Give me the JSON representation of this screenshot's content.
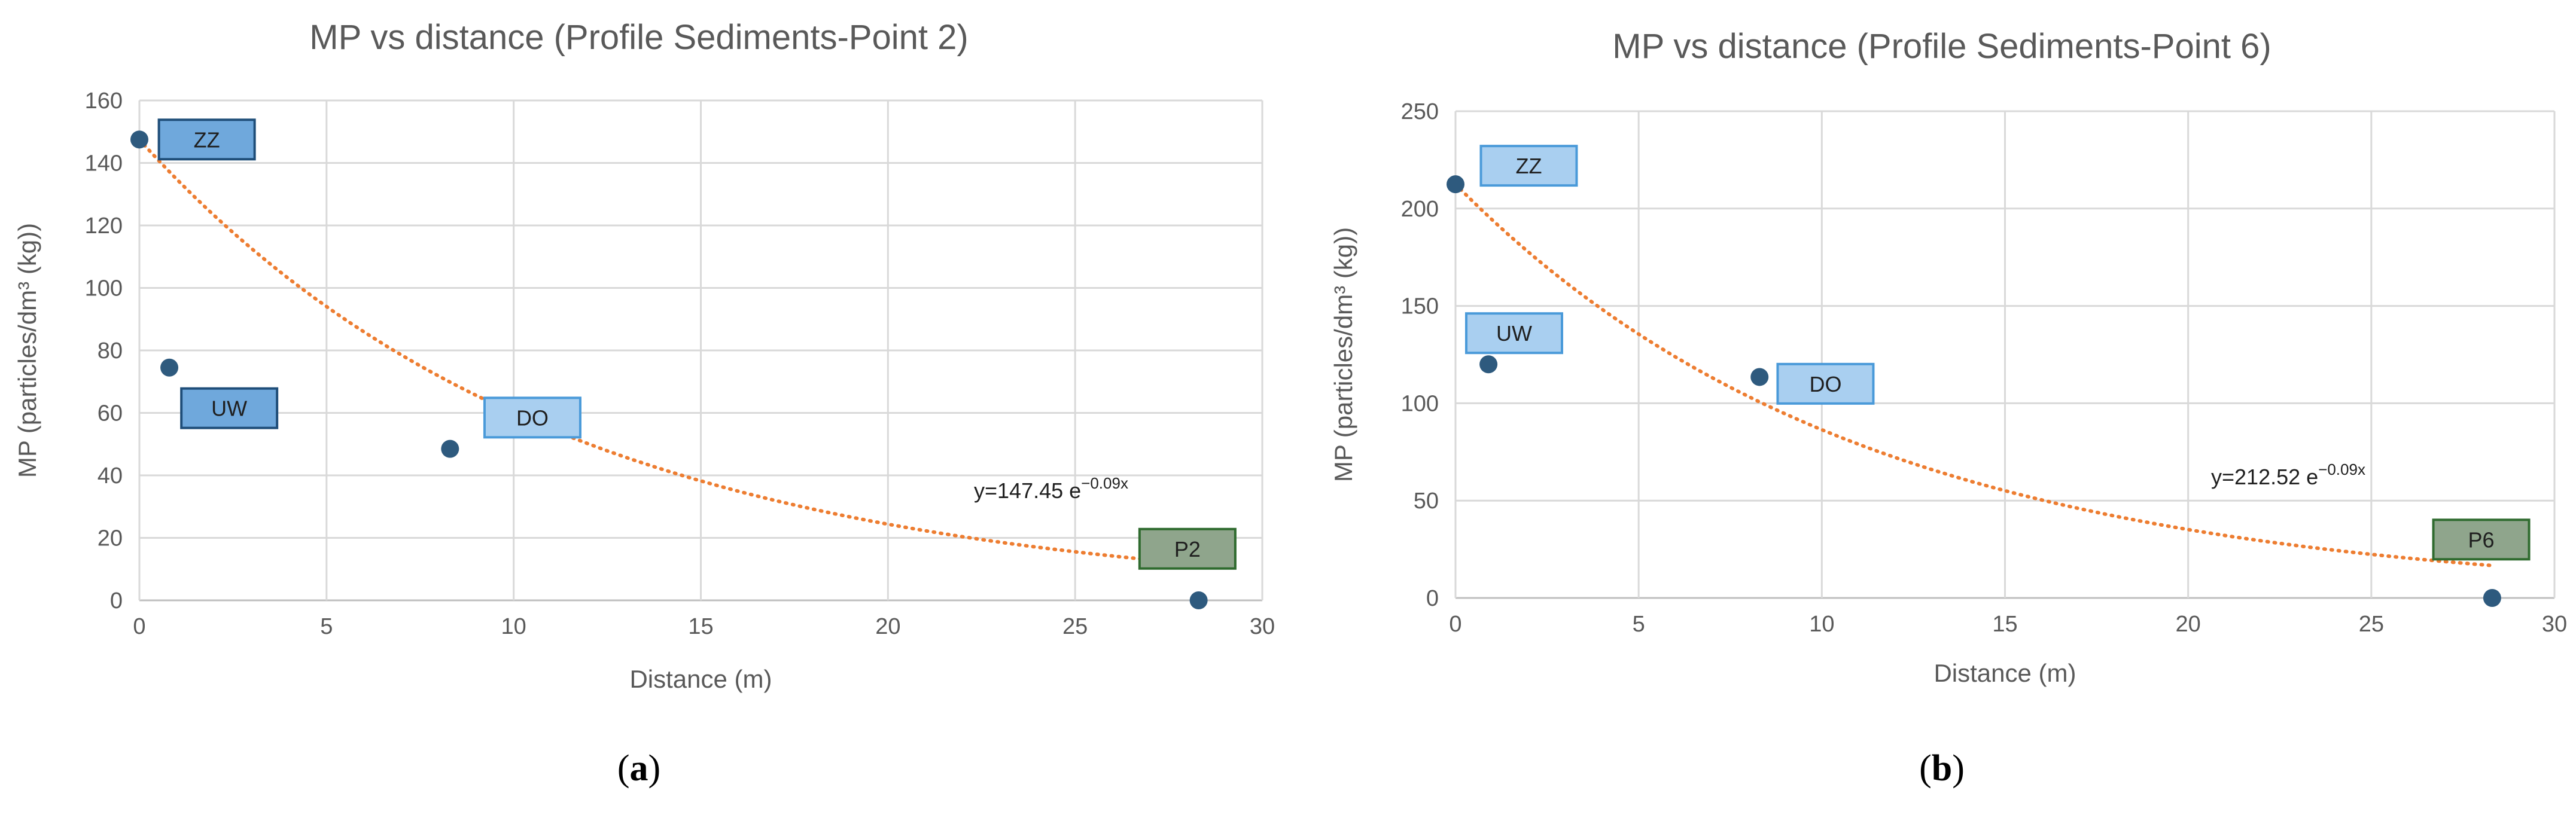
{
  "chart_data": [
    {
      "type": "scatter",
      "title": "MP vs distance (Profile Sediments-Point 2)",
      "xlabel": "Distance (m)",
      "ylabel": "MP (particles/dm³ (kg))",
      "xlim": [
        0,
        30
      ],
      "ylim": [
        0,
        160
      ],
      "xticks": [
        0,
        5,
        10,
        15,
        20,
        25,
        30
      ],
      "yticks": [
        0,
        20,
        40,
        60,
        80,
        100,
        120,
        140,
        160
      ],
      "grid": true,
      "points": [
        {
          "x": 0,
          "y": 147.5
        },
        {
          "x": 0.8,
          "y": 74.5
        },
        {
          "x": 8.3,
          "y": 48.5
        },
        {
          "x": 28.3,
          "y": 0
        }
      ],
      "trendline": {
        "type": "exponential",
        "a": 147.45,
        "b": -0.09,
        "x_range": [
          0,
          28.3
        ],
        "style": "dotted",
        "color": "#ED7D31"
      },
      "equation": {
        "base": "y=147.45 e",
        "exp": "−0.09x"
      },
      "annotations": [
        {
          "text": "ZZ",
          "style": "dark",
          "x": 1.8,
          "y": 147.5
        },
        {
          "text": "UW",
          "style": "dark",
          "x": 2.4,
          "y": 61.5
        },
        {
          "text": "DO",
          "style": "light",
          "x": 10.5,
          "y": 58.5
        },
        {
          "text": "P2",
          "style": "green",
          "x": 28.0,
          "y": 16.5
        }
      ],
      "panel_label": "a"
    },
    {
      "type": "scatter",
      "title": "MP vs distance (Profile Sediments-Point 6)",
      "xlabel": "Distance (m)",
      "ylabel": "MP (particles/dm³ (kg))",
      "xlim": [
        0,
        30
      ],
      "ylim": [
        0,
        250
      ],
      "xticks": [
        0,
        5,
        10,
        15,
        20,
        25,
        30
      ],
      "yticks": [
        0,
        50,
        100,
        150,
        200,
        250
      ],
      "grid": true,
      "points": [
        {
          "x": 0,
          "y": 212.5
        },
        {
          "x": 0.9,
          "y": 120
        },
        {
          "x": 8.3,
          "y": 113.5
        },
        {
          "x": 28.3,
          "y": 0
        }
      ],
      "trendline": {
        "type": "exponential",
        "a": 212.52,
        "b": -0.09,
        "x_range": [
          0,
          28.3
        ],
        "style": "dotted",
        "color": "#ED7D31"
      },
      "equation": {
        "base": "y=212.52 e",
        "exp": "−0.09x"
      },
      "annotations": [
        {
          "text": "ZZ",
          "style": "light",
          "x": 2.0,
          "y": 222
        },
        {
          "text": "UW",
          "style": "light",
          "x": 1.6,
          "y": 136
        },
        {
          "text": "DO",
          "style": "light",
          "x": 10.1,
          "y": 110
        },
        {
          "text": "P6",
          "style": "green",
          "x": 28.0,
          "y": 30
        }
      ],
      "panel_label": "b"
    }
  ],
  "colors": {
    "marker": "#2E5A7E",
    "grid": "#D9D9D9",
    "trendline": "#ED7D31",
    "box_dark_fill": "#6FA8DC",
    "box_dark_stroke": "#1F4E79",
    "box_light_fill": "#A9CFF0",
    "box_light_stroke": "#4A9AD9",
    "box_green_fill": "#8FA58C",
    "box_green_stroke": "#2F6B2F"
  }
}
